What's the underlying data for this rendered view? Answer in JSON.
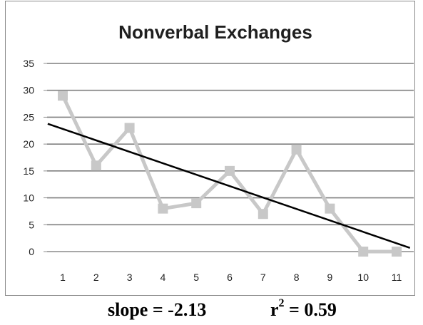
{
  "chart_data": {
    "type": "line",
    "title": "Nonverbal Exchanges",
    "xlabel": "",
    "ylabel": "",
    "categories": [
      "1",
      "2",
      "3",
      "4",
      "5",
      "6",
      "7",
      "8",
      "9",
      "10",
      "11"
    ],
    "series": [
      {
        "values": [
          29,
          16,
          23,
          8,
          9,
          15,
          7,
          19,
          8,
          0,
          0
        ],
        "color": "#c8c8c8",
        "marker": "square"
      }
    ],
    "trendline": {
      "type": "linear",
      "slope": -2.13,
      "r2": 0.59,
      "color": "#000000"
    },
    "yticks": [
      "0",
      "5",
      "10",
      "15",
      "20",
      "25",
      "30",
      "35"
    ],
    "ylim": [
      0,
      35
    ],
    "grid": true,
    "legend": "none"
  },
  "stats": {
    "slope_text": "slope = -2.13",
    "r_label": "r",
    "r_exp": "2",
    "r_value": " = 0.59"
  }
}
